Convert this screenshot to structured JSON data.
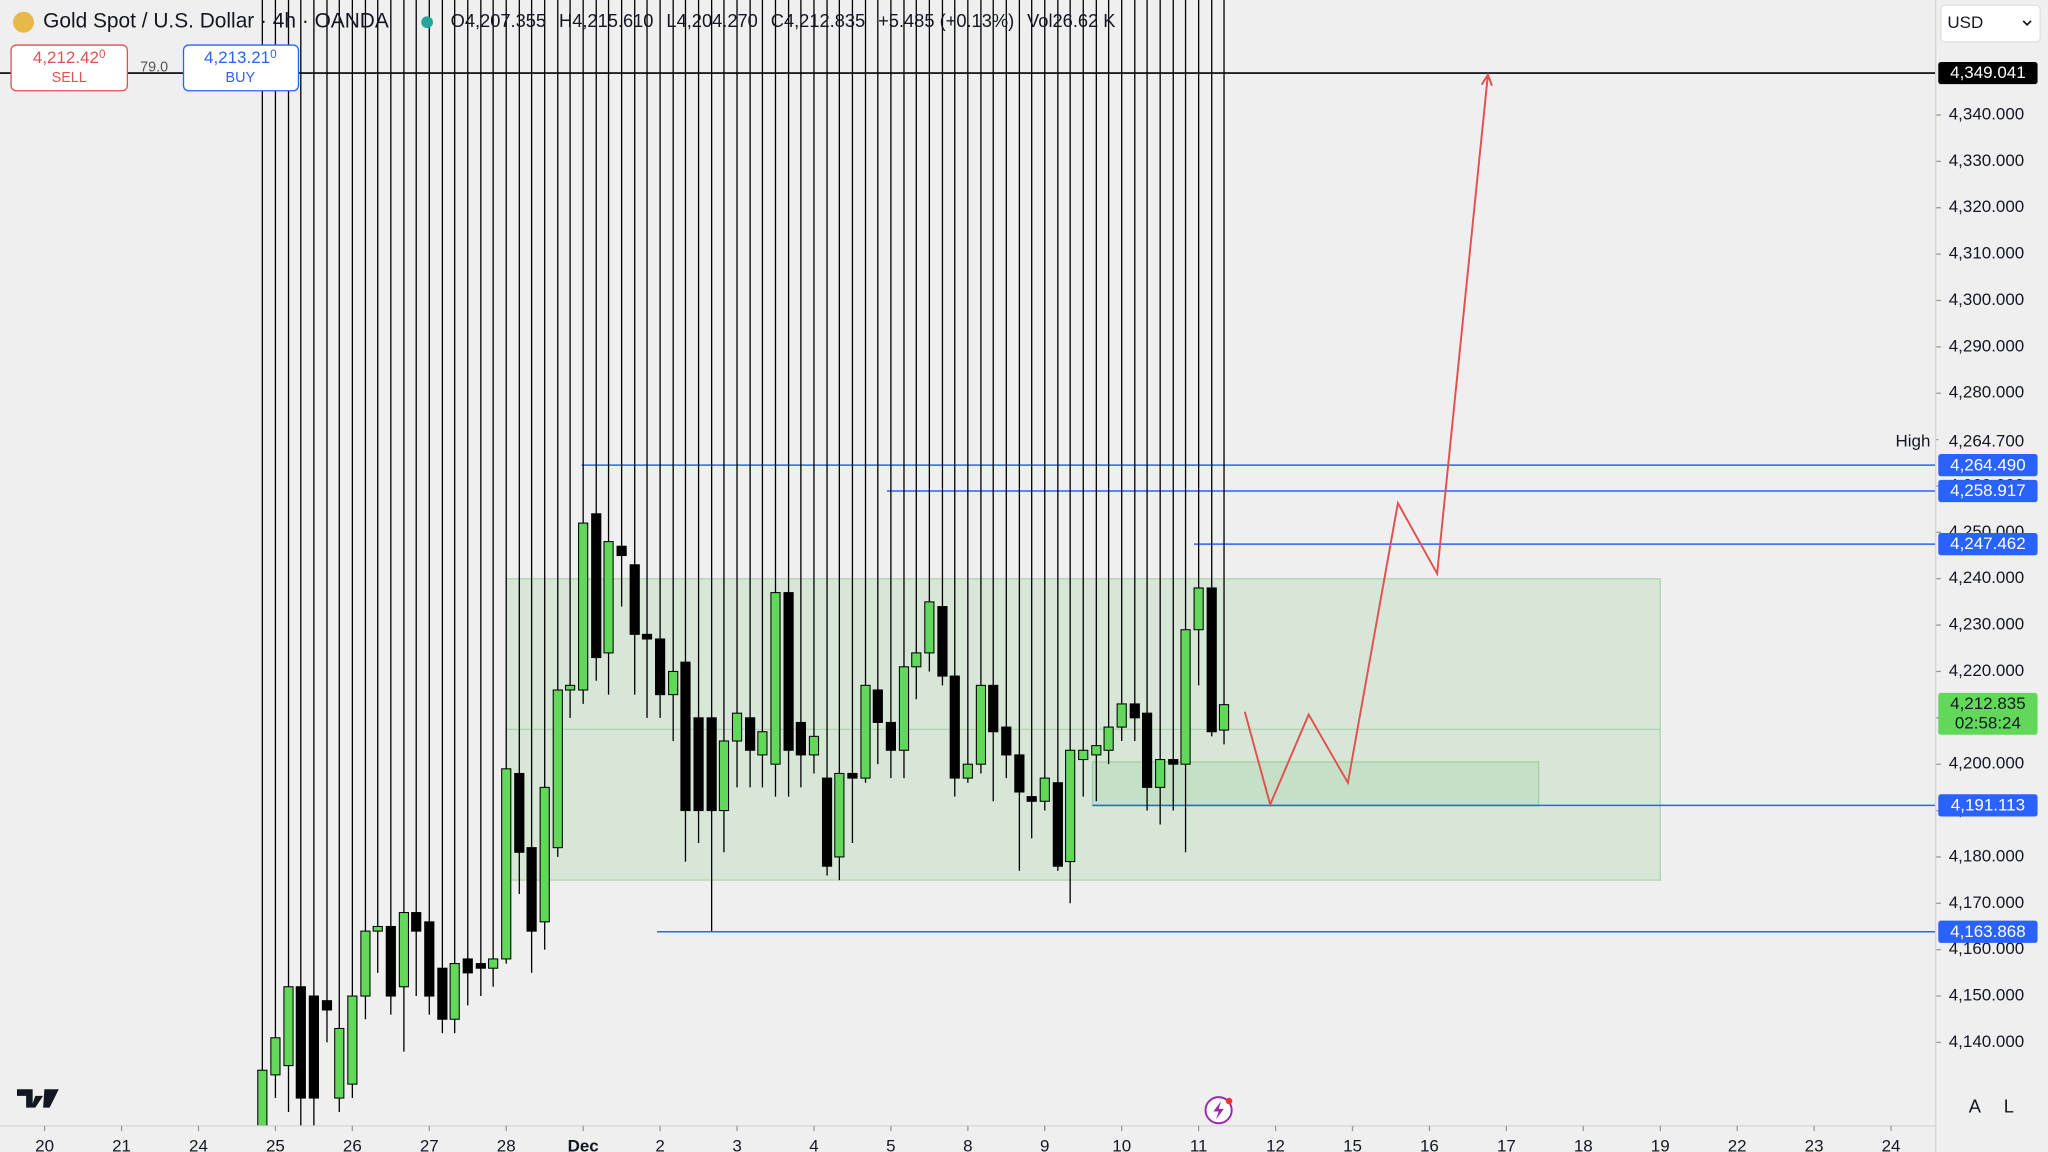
{
  "header": {
    "symbol": "Gold Spot / U.S. Dollar · 4h · OANDA",
    "ohlc": [
      {
        "label": "O",
        "value": "4,207.355"
      },
      {
        "label": "H",
        "value": "4,215.610"
      },
      {
        "label": "L",
        "value": "4,204.270"
      },
      {
        "label": "C",
        "value": "4,212.835"
      }
    ],
    "change": "+5.485 (+0.13%)",
    "vol_label": "Vol",
    "vol": "26.62 K"
  },
  "trade": {
    "sell_price": "4,212.42",
    "sell_sup": "0",
    "sell_label": "SELL",
    "spread": "79.0",
    "buy_price": "4,213.21",
    "buy_sup": "0",
    "buy_label": "BUY"
  },
  "currency": "USD",
  "scale_buttons": [
    "A",
    "L"
  ],
  "chart_data": {
    "type": "candlestick",
    "x": [
      2.83,
      3,
      3.17,
      3.33,
      3.5,
      3.67,
      3.83,
      4,
      4.17,
      4.33,
      4.5,
      4.67,
      4.83,
      5,
      5.17,
      5.33,
      5.5,
      5.67,
      5.83,
      6,
      6.17,
      6.33,
      6.5,
      6.67,
      6.83,
      7,
      7.17,
      7.33,
      7.5,
      7.67,
      7.83,
      8,
      8.17,
      8.33,
      8.5,
      8.67,
      8.83,
      9,
      9.17,
      9.33,
      9.5,
      9.67,
      9.83,
      10,
      10.17,
      10.33,
      10.5,
      10.67,
      10.83,
      11,
      11.17,
      11.33,
      11.5,
      11.67,
      11.83,
      12,
      12.17,
      12.33,
      12.5,
      12.67,
      12.83,
      13,
      13.17,
      13.33,
      13.5,
      13.67,
      13.83,
      14,
      14.17,
      14.33,
      14.5,
      14.67,
      14.83,
      15,
      15.17,
      15.33
    ],
    "open": [
      4122,
      4133,
      4135,
      4152,
      4150,
      4149,
      4128,
      4131,
      4150,
      4164,
      4165,
      4152,
      4168,
      4166,
      4156,
      4145,
      4158,
      4157,
      4156,
      4158,
      4198,
      4182,
      4166,
      4182,
      4216,
      4216,
      4254,
      4224,
      4247,
      4243,
      4228,
      4227,
      4215,
      4222,
      4210,
      4210,
      4190,
      4205,
      4210,
      4202,
      4200,
      4237,
      4209,
      4202,
      4197,
      4180,
      4198,
      4197,
      4216,
      4209,
      4203,
      4221,
      4224,
      4234,
      4219,
      4197,
      4200,
      4217,
      4208,
      4202,
      4193,
      4192,
      4196,
      4179,
      4201,
      4202,
      4203,
      4208,
      4213,
      4211,
      4195,
      4201,
      4200,
      4229,
      4238,
      4207.355
    ],
    "high": {
      "label": "High",
      "value": 4264.7,
      "value_label": "4,264.700"
    },
    "low": [
      4115,
      4128,
      4125,
      4120,
      4118,
      4140,
      4125,
      4128,
      4145,
      4155,
      4146,
      4138,
      4150,
      4146,
      4142,
      4142,
      4148,
      4150,
      4152,
      4157,
      4172,
      4155,
      4160,
      4180,
      4210,
      4213,
      4218,
      4215,
      4234,
      4215,
      4210,
      4210,
      4205,
      4179,
      4183,
      4164,
      4181,
      4195,
      4195,
      4195,
      4193,
      4193,
      4195,
      4198,
      4176,
      4175,
      4183,
      4196,
      4200,
      4197,
      4197,
      4214,
      4220,
      4217,
      4193,
      4196,
      4198,
      4192,
      4197,
      4177,
      4184,
      4190,
      4177,
      4170,
      4193,
      4192,
      4200,
      4205,
      4205,
      4190,
      4187,
      4190,
      4181,
      4217,
      4206,
      4204.27
    ],
    "close": [
      4134,
      4141,
      4152,
      4128,
      4128,
      4147,
      4143,
      4150,
      4164,
      4165,
      4150,
      4168,
      4164,
      4150,
      4145,
      4157,
      4155,
      4156,
      4158,
      4199,
      4181,
      4164,
      4195,
      4216,
      4217,
      4252,
      4223,
      4248,
      4245,
      4228,
      4227,
      4215,
      4220,
      4190,
      4190,
      4190,
      4205,
      4211,
      4203,
      4207,
      4237,
      4203,
      4202,
      4206,
      4178,
      4198,
      4197,
      4217,
      4209,
      4203,
      4221,
      4224,
      4235,
      4219,
      4197,
      4200,
      4217,
      4207,
      4202,
      4194,
      4192,
      4197,
      4178,
      4203,
      4203,
      4204,
      4208,
      4213,
      4210,
      4195,
      4201,
      4200,
      4229,
      4238,
      4207,
      4212.835
    ],
    "up_color": "#62d85b",
    "down_color": "#000000",
    "xlim": [
      -0.58,
      24.58
    ],
    "xticks": [
      {
        "value": 0,
        "label": "20"
      },
      {
        "value": 1,
        "label": "21"
      },
      {
        "value": 2,
        "label": "24"
      },
      {
        "value": 3,
        "label": "25"
      },
      {
        "value": 4,
        "label": "26"
      },
      {
        "value": 5,
        "label": "27"
      },
      {
        "value": 6,
        "label": "28"
      },
      {
        "value": 7,
        "label": "Dec"
      },
      {
        "value": 8,
        "label": "2"
      },
      {
        "value": 9,
        "label": "3"
      },
      {
        "value": 10,
        "label": "4"
      },
      {
        "value": 11,
        "label": "5"
      },
      {
        "value": 12,
        "label": "8"
      },
      {
        "value": 13,
        "label": "9"
      },
      {
        "value": 14,
        "label": "10"
      },
      {
        "value": 15,
        "label": "11"
      },
      {
        "value": 16,
        "label": "12"
      },
      {
        "value": 17,
        "label": "15"
      },
      {
        "value": 18,
        "label": "16"
      },
      {
        "value": 19,
        "label": "17"
      },
      {
        "value": 20,
        "label": "18"
      },
      {
        "value": 21,
        "label": "19"
      },
      {
        "value": 22,
        "label": "22"
      },
      {
        "value": 23,
        "label": "23"
      },
      {
        "value": 24,
        "label": "24"
      }
    ],
    "ylim": [
      4122,
      4364.8
    ],
    "yticks": [
      {
        "value": 4140,
        "label": "4,140.000"
      },
      {
        "value": 4150,
        "label": "4,150.000"
      },
      {
        "value": 4160,
        "label": "4,160.000"
      },
      {
        "value": 4170,
        "label": "4,170.000"
      },
      {
        "value": 4180,
        "label": "4,180.000"
      },
      {
        "value": 4190,
        "label": "4,190.000"
      },
      {
        "value": 4200,
        "label": "4,200.000"
      },
      {
        "value": 4210,
        "label": "4,210.000"
      },
      {
        "value": 4220,
        "label": "4,220.000"
      },
      {
        "value": 4230,
        "label": "4,230.000"
      },
      {
        "value": 4240,
        "label": "4,240.000"
      },
      {
        "value": 4250,
        "label": "4,250.000"
      },
      {
        "value": 4260,
        "label": "4,260.000"
      },
      {
        "value": 4270,
        "label": "4,270.000"
      },
      {
        "value": 4280,
        "label": "4,280.000"
      },
      {
        "value": 4290,
        "label": "4,290.000"
      },
      {
        "value": 4300,
        "label": "4,300.000"
      },
      {
        "value": 4310,
        "label": "4,310.000"
      },
      {
        "value": 4320,
        "label": "4,320.000"
      },
      {
        "value": 4330,
        "label": "4,330.000"
      },
      {
        "value": 4340,
        "label": "4,340.000"
      }
    ],
    "zone": {
      "x": [
        6,
        21
      ],
      "y": [
        4175,
        4240
      ],
      "color": "#4caf50"
    },
    "inner_zone": {
      "x": [
        13.62,
        19.42
      ],
      "y": [
        4191,
        4200.5
      ],
      "color": "#4caf50"
    },
    "projection": {
      "x": [
        15.6,
        15.93,
        16.43,
        16.94,
        17.59,
        18.1,
        18.76
      ],
      "y": [
        4211.3,
        4191.3,
        4210.7,
        4196,
        4256.3,
        4241.1,
        4348.7
      ],
      "color": "#e05252"
    },
    "levels": [
      {
        "value": 4349.041,
        "label": "4,349.041",
        "color": "#000000"
      },
      {
        "value": 4264.49,
        "label": "4,264.490",
        "start": 6.98,
        "color": "#2962ff"
      },
      {
        "value": 4258.917,
        "label": "4,258.917",
        "start": 10.95,
        "color": "#2962ff"
      },
      {
        "value": 4247.462,
        "label": "4,247.462",
        "start": 14.94,
        "color": "#2962ff"
      },
      {
        "value": 4191.113,
        "label": "4,191.113",
        "start": 13.62,
        "color": "#2962ff"
      },
      {
        "value": 4163.868,
        "label": "4,163.868",
        "start": 7.96,
        "color": "#2962ff"
      }
    ],
    "last": {
      "value": 4212.835,
      "label": "4,212.835",
      "countdown": "02:58:24",
      "color": "#62d85b"
    }
  }
}
